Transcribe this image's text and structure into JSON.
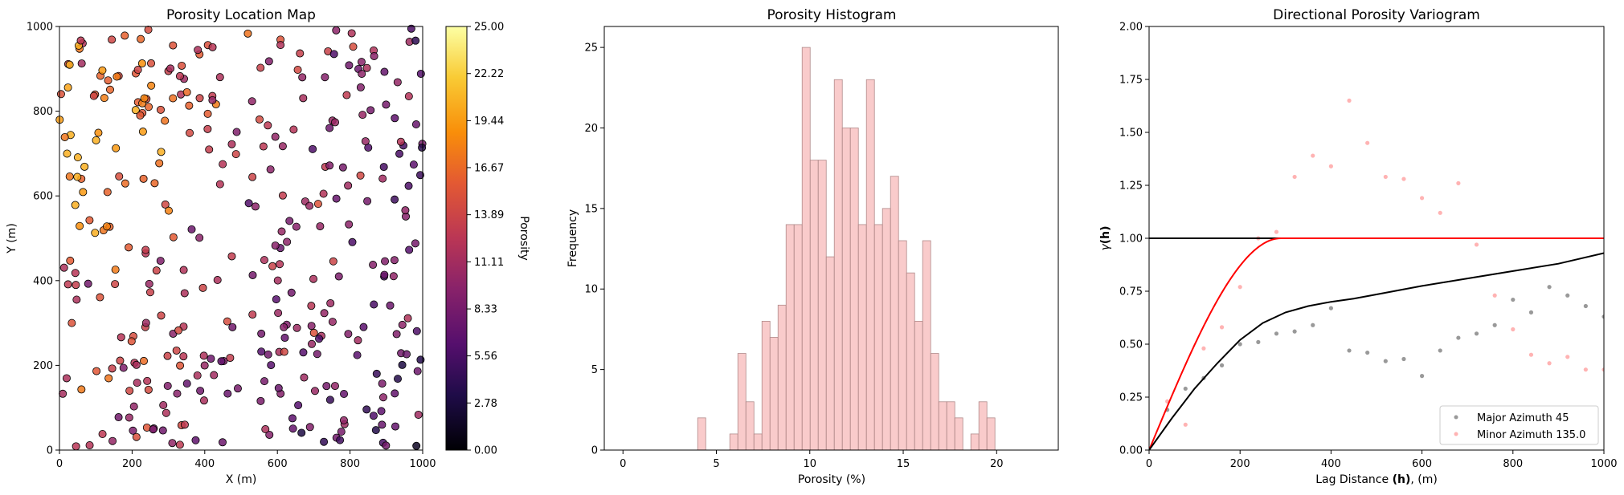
{
  "chart_data": [
    {
      "type": "scatter",
      "title": "Porosity Location Map",
      "xlabel": "X (m)",
      "ylabel": "Y (m)",
      "xlim": [
        0,
        1000
      ],
      "ylim": [
        0,
        1000
      ],
      "xticks": [
        0,
        200,
        400,
        600,
        800,
        1000
      ],
      "yticks": [
        0,
        200,
        400,
        600,
        800,
        1000
      ],
      "colormap": "inferno",
      "colorbar": {
        "label": "Porosity",
        "range": [
          0,
          25
        ],
        "ticks": [
          "0.00",
          "2.78",
          "5.56",
          "8.33",
          "11.11",
          "13.89",
          "16.67",
          "19.44",
          "22.22",
          "25.00"
        ]
      },
      "point_count": 368,
      "random_seed": 73073
    },
    {
      "type": "bar",
      "title": "Porosity Histogram",
      "xlabel": "Porosity (%)",
      "ylabel": "Frequency",
      "xlim": [
        -1,
        23.3
      ],
      "ylim": [
        0,
        26.3
      ],
      "xticks": [
        0,
        5,
        10,
        15,
        20
      ],
      "yticks": [
        0,
        5,
        10,
        15,
        20,
        25
      ],
      "bin_start": 4,
      "bin_width": 0.43,
      "values": [
        2,
        0,
        0,
        0,
        1,
        6,
        3,
        1,
        8,
        7,
        9,
        14,
        14,
        25,
        18,
        18,
        12,
        23,
        20,
        20,
        14,
        23,
        14,
        15,
        17,
        13,
        11,
        8,
        13,
        6,
        3,
        3,
        2,
        0,
        1,
        3,
        2
      ],
      "color": "#f4a0a0"
    },
    {
      "type": "scatter",
      "title": "Directional Porosity Variogram",
      "xlabel": "Lag Distance",
      "xlabel_bold": "(h)",
      "xlabel_unit": ", (m)",
      "ylabel_gamma": "γ",
      "ylabel_bold": "(h)",
      "xlim": [
        0,
        1000
      ],
      "ylim": [
        0,
        2.0
      ],
      "xticks": [
        0,
        200,
        400,
        600,
        800,
        1000
      ],
      "yticks": [
        "0.00",
        "0.25",
        "0.50",
        "0.75",
        "1.00",
        "1.25",
        "1.50",
        "1.75",
        "2.00"
      ],
      "sill": 1.0,
      "series": [
        {
          "name": "Major Azimuth 45",
          "color": "#999999",
          "x": [
            40,
            80,
            120,
            160,
            200,
            240,
            280,
            320,
            360,
            400,
            440,
            480,
            520,
            560,
            600,
            640,
            680,
            720,
            760,
            800,
            840,
            880,
            920,
            960,
            1000
          ],
          "y": [
            0.19,
            0.29,
            0.34,
            0.4,
            0.5,
            0.51,
            0.55,
            0.56,
            0.59,
            0.67,
            0.47,
            0.46,
            0.42,
            0.43,
            0.35,
            0.47,
            0.53,
            0.55,
            0.59,
            0.71,
            0.65,
            0.77,
            0.73,
            0.68,
            0.63
          ]
        },
        {
          "name": "Minor Azimuth 135.0",
          "color": "#ffb3b3",
          "x": [
            40,
            80,
            120,
            160,
            200,
            240,
            280,
            320,
            360,
            400,
            440,
            480,
            520,
            560,
            600,
            640,
            680,
            720,
            760,
            800,
            840,
            880,
            920,
            960,
            1000
          ],
          "y": [
            0.23,
            0.12,
            0.48,
            0.58,
            0.77,
            1.0,
            1.03,
            1.29,
            1.39,
            1.34,
            1.65,
            1.45,
            1.29,
            1.28,
            1.19,
            1.12,
            1.26,
            0.97,
            0.73,
            0.57,
            0.45,
            0.41,
            0.44,
            0.38,
            0.38
          ]
        }
      ],
      "models": [
        {
          "color": "#ff0000",
          "range": 290,
          "type": "spherical"
        },
        {
          "color": "#000000",
          "points": [
            [
              0,
              0
            ],
            [
              50,
              0.15
            ],
            [
              100,
              0.29
            ],
            [
              150,
              0.41
            ],
            [
              200,
              0.52
            ],
            [
              250,
              0.6
            ],
            [
              300,
              0.65
            ],
            [
              350,
              0.68
            ],
            [
              400,
              0.7
            ],
            [
              450,
              0.715
            ],
            [
              500,
              0.735
            ],
            [
              600,
              0.775
            ],
            [
              700,
              0.81
            ],
            [
              800,
              0.845
            ],
            [
              900,
              0.88
            ],
            [
              1000,
              0.93
            ]
          ]
        }
      ],
      "legend_position": "lower-right"
    }
  ]
}
